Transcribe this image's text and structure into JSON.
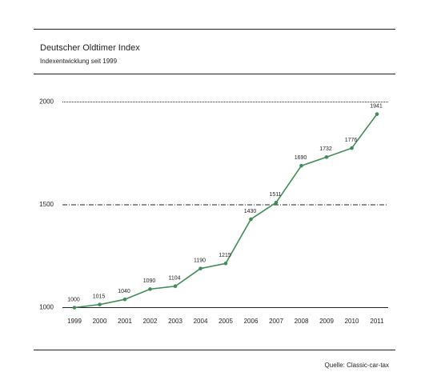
{
  "chart_data": {
    "type": "line",
    "title": "Deutscher Oldtimer Index",
    "subtitle": "Indexentwicklung seit 1999",
    "source": "Quelle: Classic-car-tax",
    "categories": [
      "1999",
      "2000",
      "2001",
      "2002",
      "2003",
      "2004",
      "2005",
      "2006",
      "2007",
      "2008",
      "2009",
      "2010",
      "2011"
    ],
    "values": [
      1000,
      1015,
      1040,
      1090,
      1104,
      1190,
      1215,
      1430,
      1511,
      1690,
      1732,
      1776,
      1941
    ],
    "color": "#3f8c57",
    "ylim": [
      1000,
      2000
    ],
    "yticks": [
      1000,
      1500,
      2000
    ],
    "grid": true
  }
}
